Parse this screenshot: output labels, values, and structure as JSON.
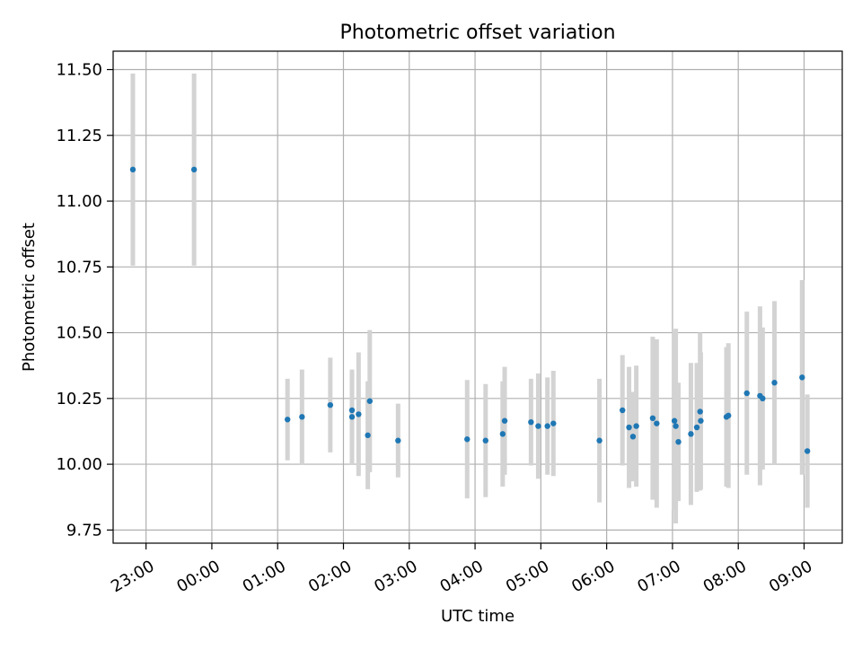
{
  "chart_data": {
    "type": "scatter",
    "title": "Photometric offset variation",
    "xlabel": "UTC time",
    "ylabel": "Photometric offset",
    "x_unit": "UTC time (hours relative to 00:00 of the second day; negative values are the previous evening)",
    "xlim": [
      -1.5,
      9.58
    ],
    "ylim": [
      9.7,
      11.57
    ],
    "grid": true,
    "x_ticks": [
      {
        "value": -1,
        "label": "23:00"
      },
      {
        "value": 0,
        "label": "00:00"
      },
      {
        "value": 1,
        "label": "01:00"
      },
      {
        "value": 2,
        "label": "02:00"
      },
      {
        "value": 3,
        "label": "03:00"
      },
      {
        "value": 4,
        "label": "04:00"
      },
      {
        "value": 5,
        "label": "05:00"
      },
      {
        "value": 6,
        "label": "06:00"
      },
      {
        "value": 7,
        "label": "07:00"
      },
      {
        "value": 8,
        "label": "08:00"
      },
      {
        "value": 9,
        "label": "09:00"
      }
    ],
    "y_ticks": [
      {
        "value": 9.75,
        "label": "9.75"
      },
      {
        "value": 10.0,
        "label": "10.00"
      },
      {
        "value": 10.25,
        "label": "10.25"
      },
      {
        "value": 10.5,
        "label": "10.50"
      },
      {
        "value": 10.75,
        "label": "10.75"
      },
      {
        "value": 11.0,
        "label": "11.00"
      },
      {
        "value": 11.25,
        "label": "11.25"
      },
      {
        "value": 11.5,
        "label": "11.50"
      }
    ],
    "point_color": "#1f77b4",
    "errorbar_color": "#d3d3d3",
    "points": [
      {
        "x": -1.2,
        "y": 11.12,
        "err": 0.365
      },
      {
        "x": -0.27,
        "y": 11.12,
        "err": 0.365
      },
      {
        "x": 1.15,
        "y": 10.17,
        "err": 0.155
      },
      {
        "x": 1.37,
        "y": 10.18,
        "err": 0.18
      },
      {
        "x": 1.8,
        "y": 10.225,
        "err": 0.18
      },
      {
        "x": 2.13,
        "y": 10.205,
        "err": 0.14
      },
      {
        "x": 2.13,
        "y": 10.18,
        "err": 0.18
      },
      {
        "x": 2.23,
        "y": 10.19,
        "err": 0.235
      },
      {
        "x": 2.37,
        "y": 10.11,
        "err": 0.205
      },
      {
        "x": 2.4,
        "y": 10.24,
        "err": 0.27
      },
      {
        "x": 2.83,
        "y": 10.09,
        "err": 0.14
      },
      {
        "x": 3.88,
        "y": 10.095,
        "err": 0.225
      },
      {
        "x": 4.16,
        "y": 10.09,
        "err": 0.215
      },
      {
        "x": 4.42,
        "y": 10.115,
        "err": 0.2
      },
      {
        "x": 4.45,
        "y": 10.165,
        "err": 0.205
      },
      {
        "x": 4.85,
        "y": 10.16,
        "err": 0.165
      },
      {
        "x": 4.96,
        "y": 10.145,
        "err": 0.2
      },
      {
        "x": 5.1,
        "y": 10.145,
        "err": 0.185
      },
      {
        "x": 5.19,
        "y": 10.155,
        "err": 0.2
      },
      {
        "x": 5.89,
        "y": 10.09,
        "err": 0.235
      },
      {
        "x": 6.24,
        "y": 10.205,
        "err": 0.21
      },
      {
        "x": 6.34,
        "y": 10.14,
        "err": 0.23
      },
      {
        "x": 6.4,
        "y": 10.105,
        "err": 0.17
      },
      {
        "x": 6.45,
        "y": 10.145,
        "err": 0.23
      },
      {
        "x": 6.7,
        "y": 10.175,
        "err": 0.31
      },
      {
        "x": 6.76,
        "y": 10.155,
        "err": 0.32
      },
      {
        "x": 7.03,
        "y": 10.165,
        "err": 0.34
      },
      {
        "x": 7.05,
        "y": 10.145,
        "err": 0.37
      },
      {
        "x": 7.09,
        "y": 10.085,
        "err": 0.225
      },
      {
        "x": 7.28,
        "y": 10.115,
        "err": 0.27
      },
      {
        "x": 7.37,
        "y": 10.14,
        "err": 0.245
      },
      {
        "x": 7.42,
        "y": 10.2,
        "err": 0.3
      },
      {
        "x": 7.43,
        "y": 10.165,
        "err": 0.26
      },
      {
        "x": 7.82,
        "y": 10.18,
        "err": 0.265
      },
      {
        "x": 7.85,
        "y": 10.185,
        "err": 0.275
      },
      {
        "x": 8.13,
        "y": 10.27,
        "err": 0.31
      },
      {
        "x": 8.33,
        "y": 10.26,
        "err": 0.34
      },
      {
        "x": 8.37,
        "y": 10.25,
        "err": 0.27
      },
      {
        "x": 8.55,
        "y": 10.31,
        "err": 0.31
      },
      {
        "x": 8.97,
        "y": 10.33,
        "err": 0.37
      },
      {
        "x": 9.05,
        "y": 10.05,
        "err": 0.215
      }
    ]
  }
}
